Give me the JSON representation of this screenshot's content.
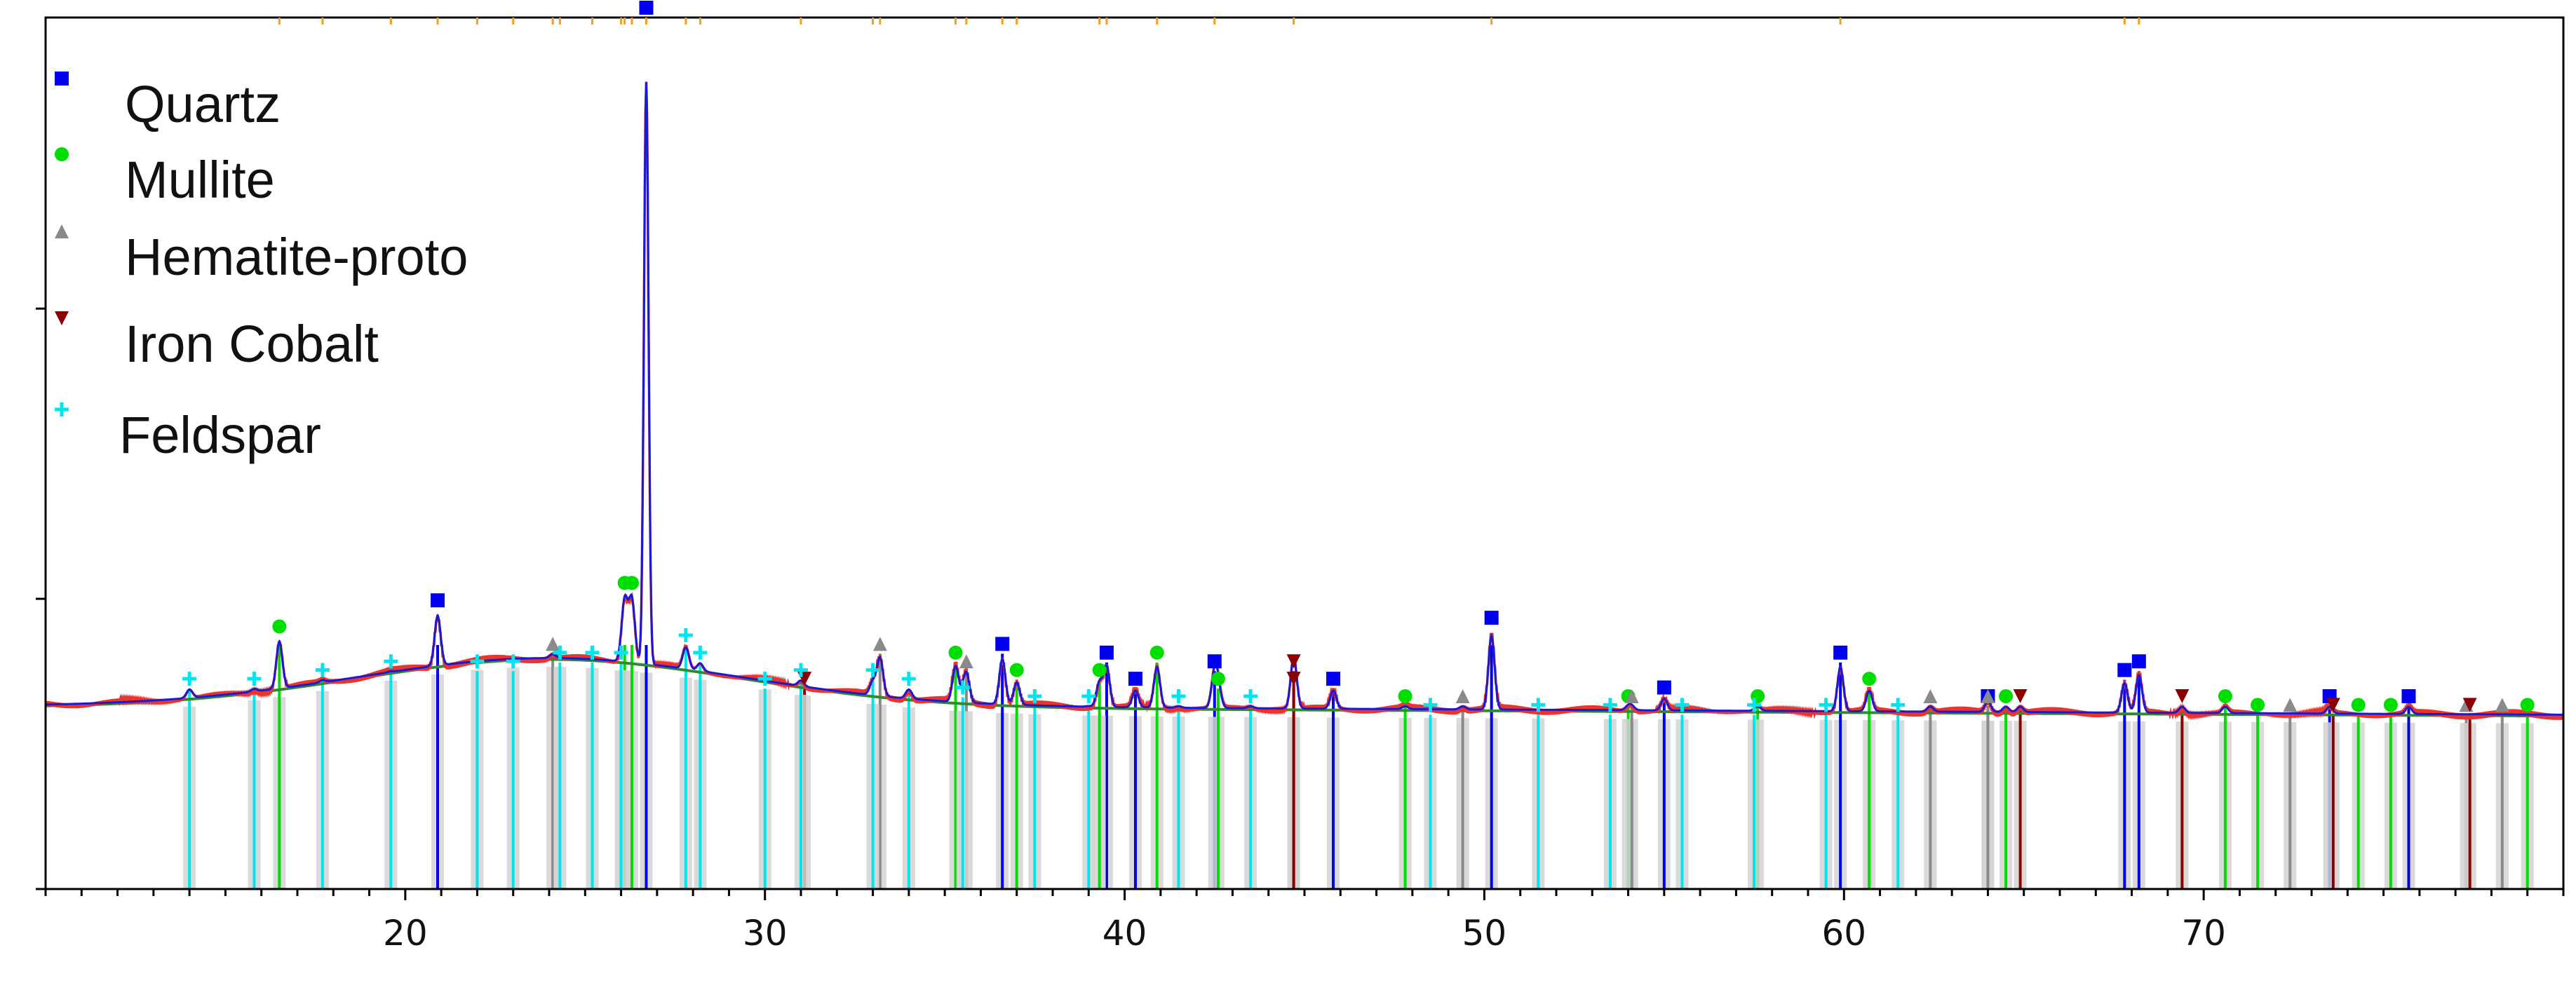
{
  "chart_data": {
    "type": "line",
    "title": "",
    "xlabel": "",
    "ylabel": "",
    "xlim": [
      10,
      80
    ],
    "ylim": [
      0,
      100
    ],
    "x_ticks": [
      20,
      30,
      40,
      50,
      60,
      70
    ],
    "grid": false,
    "legend_placement": "top-left",
    "colors": {
      "measured": "#e8352e",
      "fit": "#1a1ad4",
      "background": "#2e8b2e",
      "reference_fill": "#d4d4d4",
      "axes": "#000000"
    },
    "series": [
      {
        "name": "Quartz",
        "marker": "square",
        "color": "#0000ee",
        "peaks": [
          [
            20.9,
            32
          ],
          [
            26.7,
            100
          ],
          [
            36.6,
            27
          ],
          [
            39.5,
            26
          ],
          [
            40.3,
            23
          ],
          [
            42.5,
            25
          ],
          [
            45.8,
            23
          ],
          [
            50.2,
            30
          ],
          [
            55.0,
            22
          ],
          [
            59.9,
            26
          ],
          [
            64.0,
            21
          ],
          [
            67.8,
            24
          ],
          [
            68.2,
            25
          ],
          [
            73.5,
            21
          ],
          [
            75.7,
            21
          ]
        ]
      },
      {
        "name": "Mullite",
        "marker": "circle",
        "color": "#00dd00",
        "peaks": [
          [
            16.5,
            29
          ],
          [
            26.1,
            34
          ],
          [
            26.3,
            34
          ],
          [
            35.3,
            26
          ],
          [
            37.0,
            24
          ],
          [
            39.3,
            24
          ],
          [
            40.9,
            26
          ],
          [
            42.6,
            23
          ],
          [
            47.8,
            21
          ],
          [
            54.0,
            21
          ],
          [
            57.6,
            21
          ],
          [
            60.7,
            23
          ],
          [
            64.5,
            21
          ],
          [
            70.6,
            21
          ],
          [
            71.5,
            20
          ],
          [
            74.3,
            20
          ],
          [
            75.2,
            20
          ],
          [
            79.0,
            20
          ]
        ]
      },
      {
        "name": "Hematite-proto",
        "marker": "triangle-up",
        "color": "#8a8a8a",
        "peaks": [
          [
            24.1,
            27
          ],
          [
            33.2,
            27
          ],
          [
            35.6,
            25
          ],
          [
            49.4,
            21
          ],
          [
            54.1,
            21
          ],
          [
            62.4,
            21
          ],
          [
            64.0,
            21
          ],
          [
            72.4,
            20
          ],
          [
            77.3,
            20
          ],
          [
            78.3,
            20
          ]
        ]
      },
      {
        "name": "Iron Cobalt",
        "marker": "triangle-down",
        "color": "#8b0000",
        "peaks": [
          [
            31.1,
            23
          ],
          [
            44.7,
            25
          ],
          [
            44.7,
            23
          ],
          [
            64.9,
            21
          ],
          [
            69.4,
            21
          ],
          [
            73.6,
            20
          ],
          [
            77.4,
            20
          ]
        ]
      },
      {
        "name": "Feldspar",
        "marker": "plus",
        "color": "#00e5ee",
        "peaks": [
          [
            14.0,
            23
          ],
          [
            15.8,
            23
          ],
          [
            17.7,
            24
          ],
          [
            19.6,
            25
          ],
          [
            22.0,
            25
          ],
          [
            23.0,
            25
          ],
          [
            24.3,
            26
          ],
          [
            25.2,
            26
          ],
          [
            26.0,
            26
          ],
          [
            27.8,
            28
          ],
          [
            28.2,
            26
          ],
          [
            30.0,
            23
          ],
          [
            31.0,
            24
          ],
          [
            33.0,
            24
          ],
          [
            34.0,
            23
          ],
          [
            35.5,
            22
          ],
          [
            37.5,
            21
          ],
          [
            39.0,
            21
          ],
          [
            41.5,
            21
          ],
          [
            43.5,
            21
          ],
          [
            48.5,
            20
          ],
          [
            51.5,
            20
          ],
          [
            53.5,
            20
          ],
          [
            55.5,
            20
          ],
          [
            57.5,
            20
          ],
          [
            59.5,
            20
          ],
          [
            61.5,
            20
          ]
        ]
      }
    ]
  }
}
